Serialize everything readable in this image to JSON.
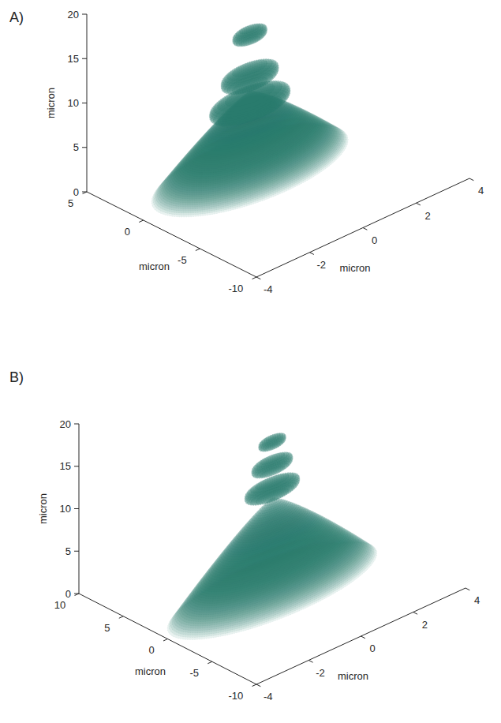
{
  "chart_data": [
    {
      "type": "volume3d",
      "title": "A)",
      "x_label": "micron",
      "y_label": "micron",
      "z_label": "micron",
      "xlim": [
        -4,
        4
      ],
      "xticks": [
        -4,
        -2,
        0,
        2,
        4
      ],
      "ylim": [
        -10,
        5
      ],
      "yticks": [
        -10,
        -5,
        0,
        5
      ],
      "zlim": [
        0,
        20
      ],
      "zticks": [
        0,
        5,
        10,
        15,
        20
      ],
      "color": "#2b7c6f",
      "center": [
        0,
        0
      ],
      "cone": {
        "base_radius": 3.4,
        "height": 9
      },
      "lobes": [
        {
          "z": 7.6,
          "radius": 1.4,
          "thickness": 2.2
        },
        {
          "z": 10.6,
          "radius": 1.0,
          "thickness": 2.2
        },
        {
          "z": 15.3,
          "radius": 0.6,
          "thickness": 1.6
        }
      ]
    },
    {
      "type": "volume3d",
      "title": "B)",
      "x_label": "micron",
      "y_label": "micron",
      "z_label": "micron",
      "xlim": [
        -4,
        4
      ],
      "xticks": [
        -4,
        -2,
        0,
        2,
        4
      ],
      "ylim": [
        -10,
        10
      ],
      "yticks": [
        -10,
        -5,
        0,
        5,
        10
      ],
      "zlim": [
        0,
        20
      ],
      "zticks": [
        0,
        5,
        10,
        15,
        20
      ],
      "color": "#2b7c6f",
      "center": [
        0,
        0
      ],
      "cone": {
        "base_radius": 3.8,
        "height": 11
      },
      "lobes": [
        {
          "z": 12.0,
          "radius": 1.0,
          "thickness": 2.0
        },
        {
          "z": 14.8,
          "radius": 0.75,
          "thickness": 1.8
        },
        {
          "z": 17.5,
          "radius": 0.5,
          "thickness": 1.4
        }
      ]
    }
  ]
}
